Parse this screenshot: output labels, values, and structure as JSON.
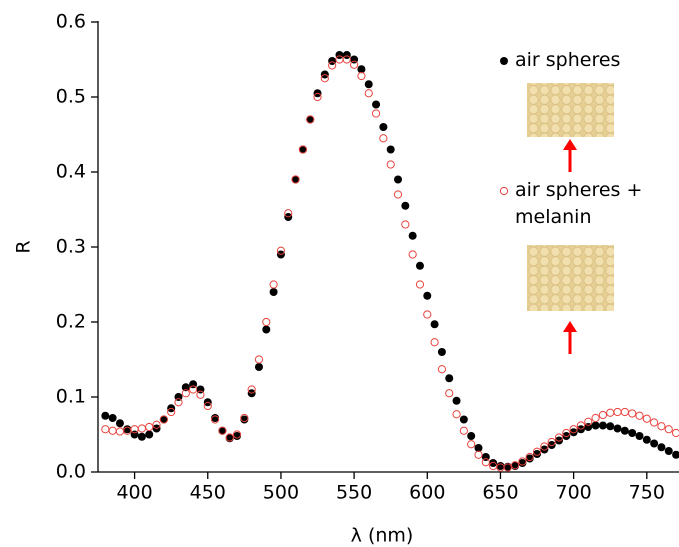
{
  "chart_data": {
    "type": "scatter",
    "x_label": "λ (nm)",
    "y_label": "R",
    "xlim": [
      375,
      772
    ],
    "ylim": [
      0,
      0.6
    ],
    "xticks": [
      400,
      450,
      500,
      550,
      600,
      650,
      700,
      750
    ],
    "yticks": [
      {
        "value": 0,
        "label": "0.0"
      },
      0.1,
      0.2,
      0.3,
      0.4,
      0.5,
      0.6
    ],
    "x": [
      380,
      385,
      390,
      395,
      400,
      405,
      410,
      415,
      420,
      425,
      430,
      435,
      440,
      445,
      450,
      455,
      460,
      465,
      470,
      475,
      480,
      485,
      490,
      495,
      500,
      505,
      510,
      515,
      520,
      525,
      530,
      535,
      540,
      545,
      550,
      555,
      560,
      565,
      570,
      575,
      580,
      585,
      590,
      595,
      600,
      605,
      610,
      615,
      620,
      625,
      630,
      635,
      640,
      645,
      650,
      655,
      660,
      665,
      670,
      675,
      680,
      685,
      690,
      695,
      700,
      705,
      710,
      715,
      720,
      725,
      730,
      735,
      740,
      745,
      750,
      755,
      760,
      765,
      770
    ],
    "series": [
      {
        "name": "air spheres",
        "color": "#000000",
        "marker": "filled",
        "values": [
          0.075,
          0.072,
          0.065,
          0.057,
          0.05,
          0.047,
          0.05,
          0.058,
          0.07,
          0.085,
          0.1,
          0.113,
          0.117,
          0.11,
          0.093,
          0.072,
          0.055,
          0.045,
          0.048,
          0.07,
          0.105,
          0.14,
          0.19,
          0.24,
          0.29,
          0.34,
          0.39,
          0.43,
          0.47,
          0.505,
          0.53,
          0.548,
          0.556,
          0.556,
          0.55,
          0.537,
          0.517,
          0.49,
          0.46,
          0.43,
          0.39,
          0.355,
          0.315,
          0.275,
          0.235,
          0.197,
          0.16,
          0.125,
          0.095,
          0.07,
          0.048,
          0.032,
          0.02,
          0.012,
          0.008,
          0.007,
          0.008,
          0.012,
          0.018,
          0.024,
          0.03,
          0.036,
          0.042,
          0.048,
          0.053,
          0.057,
          0.06,
          0.062,
          0.062,
          0.061,
          0.058,
          0.055,
          0.052,
          0.048,
          0.043,
          0.038,
          0.033,
          0.028,
          0.023
        ]
      },
      {
        "name": "air spheres + melanin",
        "color": "#e8403a",
        "marker": "open",
        "values": [
          0.057,
          0.055,
          0.054,
          0.055,
          0.057,
          0.058,
          0.06,
          0.063,
          0.07,
          0.08,
          0.093,
          0.105,
          0.11,
          0.103,
          0.088,
          0.07,
          0.055,
          0.046,
          0.05,
          0.072,
          0.11,
          0.15,
          0.2,
          0.25,
          0.295,
          0.345,
          0.39,
          0.43,
          0.47,
          0.5,
          0.525,
          0.542,
          0.55,
          0.55,
          0.543,
          0.528,
          0.505,
          0.478,
          0.445,
          0.41,
          0.37,
          0.33,
          0.29,
          0.25,
          0.21,
          0.173,
          0.137,
          0.105,
          0.077,
          0.055,
          0.037,
          0.023,
          0.013,
          0.008,
          0.006,
          0.006,
          0.009,
          0.014,
          0.02,
          0.027,
          0.034,
          0.04,
          0.046,
          0.052,
          0.057,
          0.062,
          0.067,
          0.072,
          0.076,
          0.079,
          0.08,
          0.08,
          0.078,
          0.075,
          0.071,
          0.066,
          0.061,
          0.057,
          0.052
        ]
      }
    ]
  }
}
